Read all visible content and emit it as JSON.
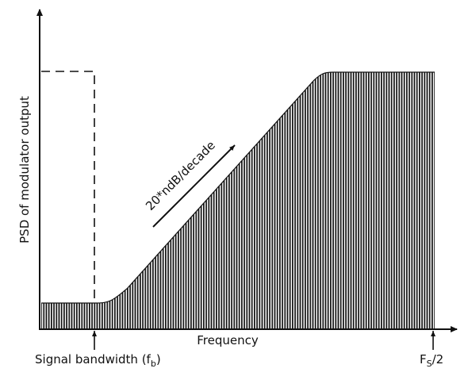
{
  "labels": {
    "y_axis": "PSD of modulator output",
    "x_axis": "Frequency",
    "slope": "20*ndB/decade",
    "bandwidth_prefix": "Signal bandwidth (f",
    "bandwidth_sub": "b",
    "bandwidth_suffix": ")",
    "fs_main": "F",
    "fs_sub": "S",
    "fs_suffix": "/2"
  },
  "colors": {
    "ink": "#111111",
    "background": "#ffffff"
  }
}
